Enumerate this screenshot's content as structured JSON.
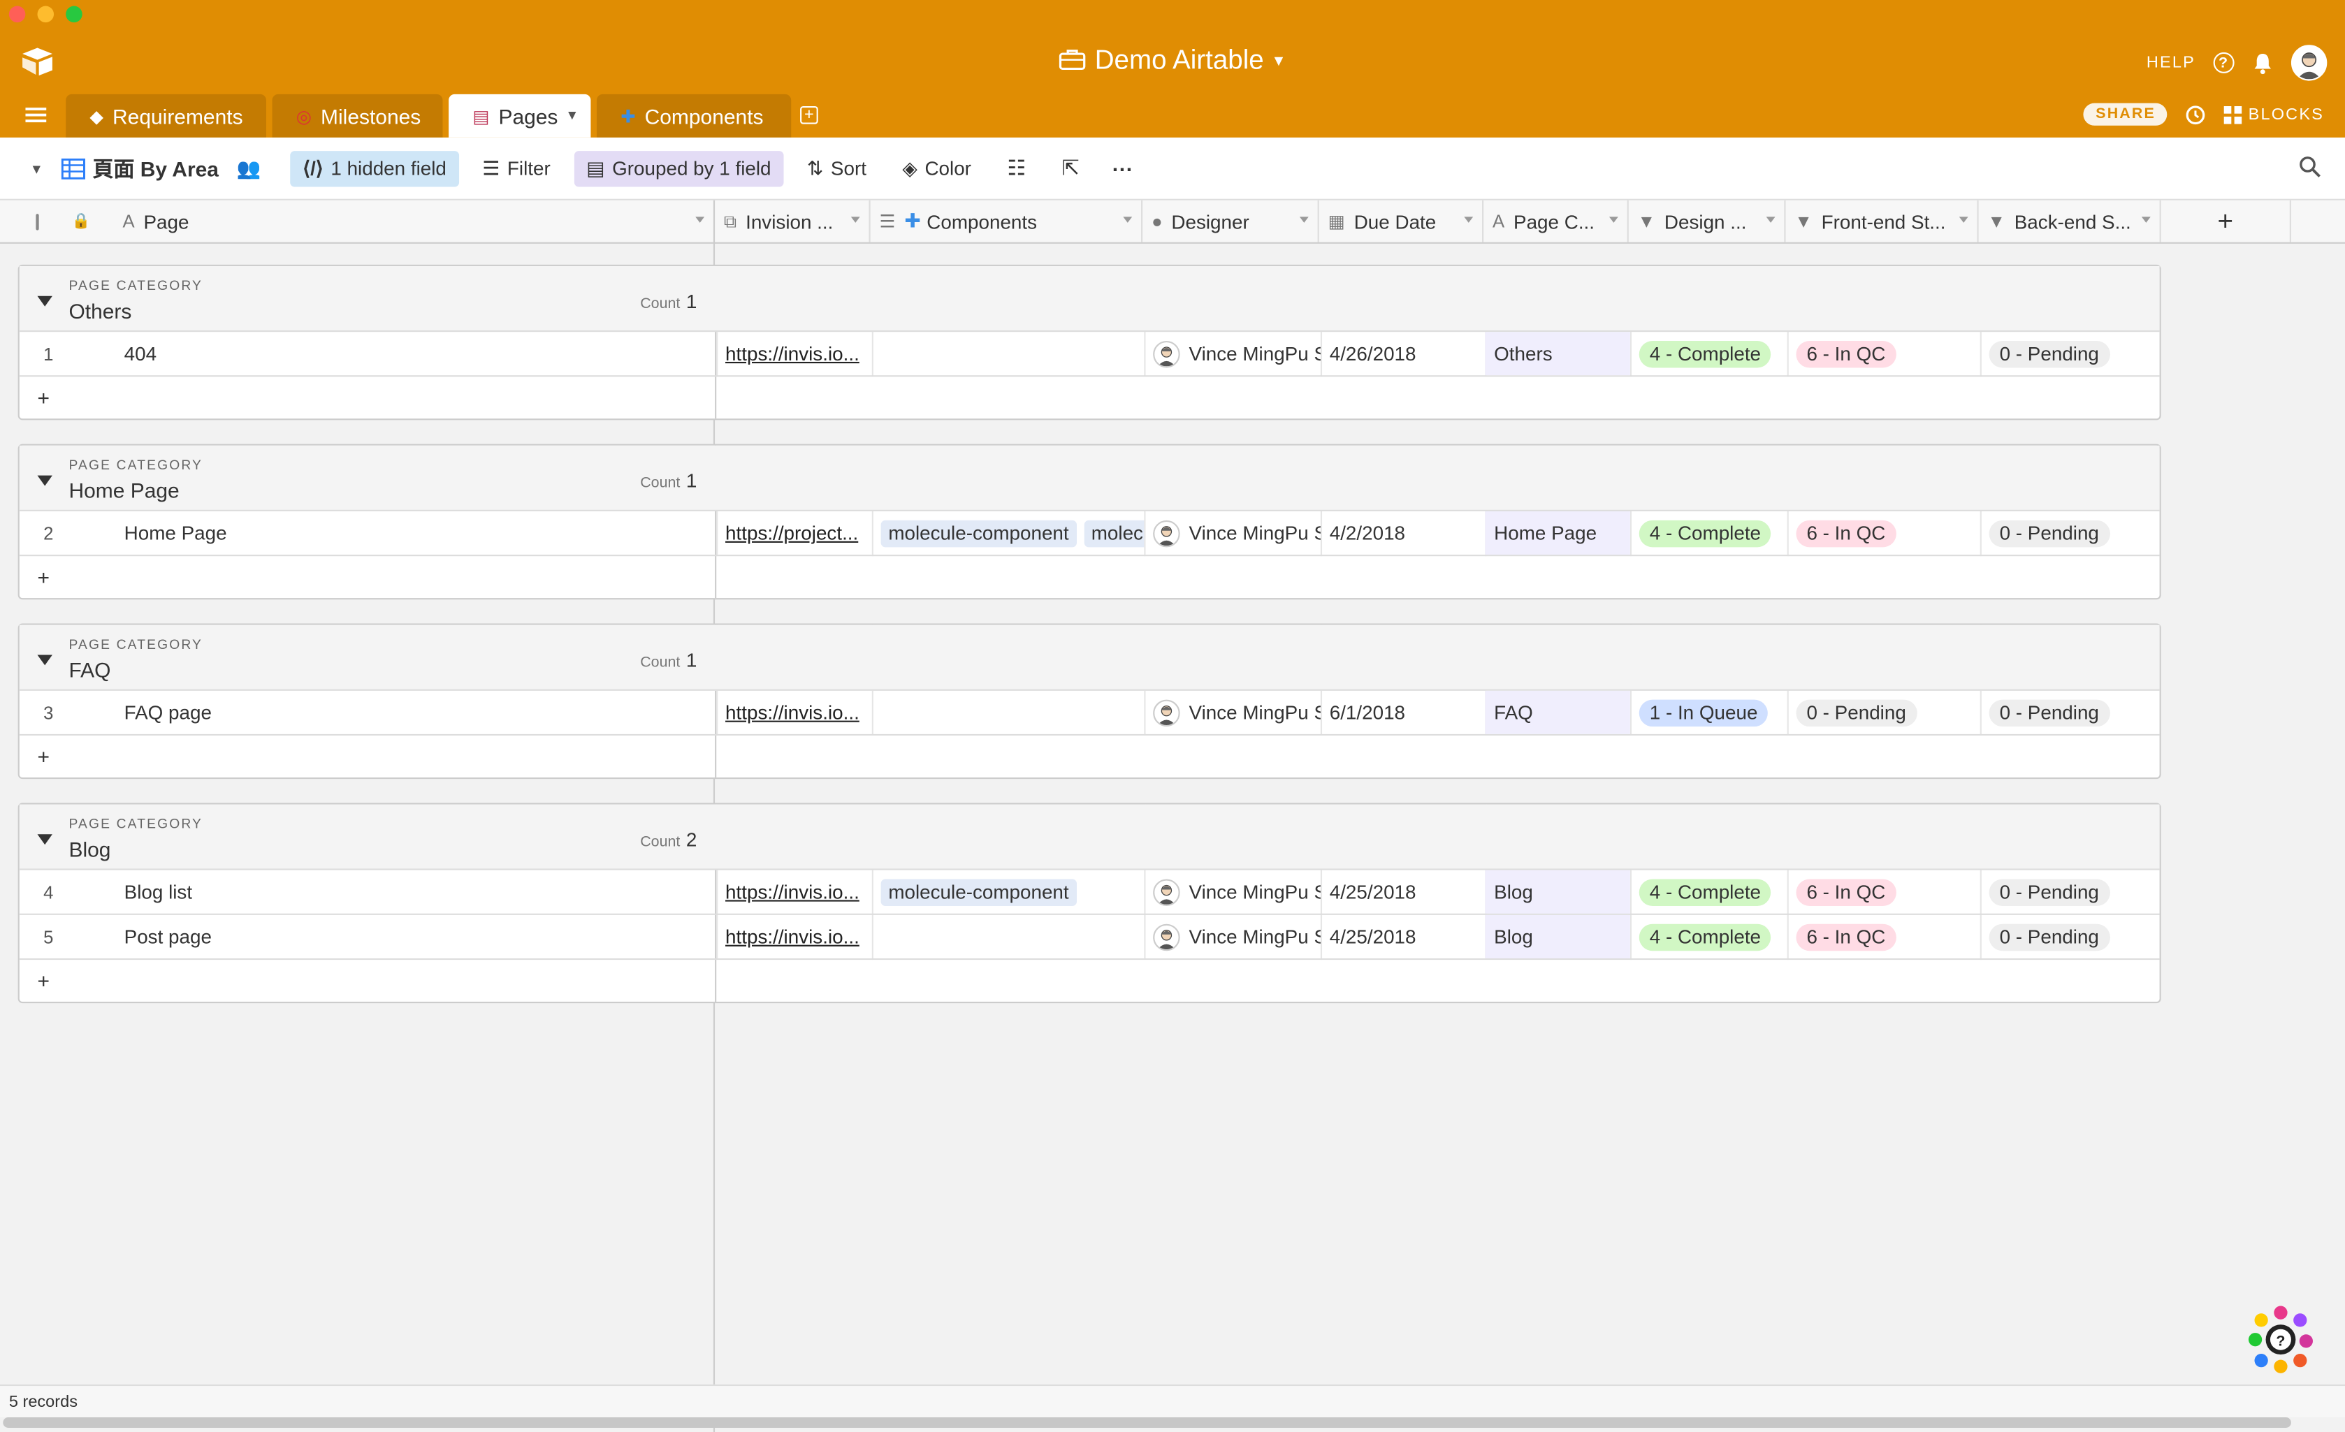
{
  "window": {
    "base_title": "Demo Airtable",
    "help_label": "HELP",
    "share_label": "SHARE",
    "blocks_label": "BLOCKS",
    "traffic_colors": [
      "#ff5f57",
      "#febc2e",
      "#28c840"
    ],
    "accent_color": "#e08d03"
  },
  "tabs": [
    {
      "label": "Requirements",
      "icon": "hammer-icon",
      "active": false
    },
    {
      "label": "Milestones",
      "icon": "target-icon",
      "active": false
    },
    {
      "label": "Pages",
      "icon": "books-icon",
      "active": true
    },
    {
      "label": "Components",
      "icon": "puzzle-icon",
      "active": false
    }
  ],
  "toolbar": {
    "view_name": "頁面 By Area",
    "hidden_fields": "1 hidden field",
    "filter": "Filter",
    "grouped": "Grouped by 1 field",
    "sort": "Sort",
    "color": "Color"
  },
  "columns": [
    {
      "name": "Page",
      "icon": "text-field-icon"
    },
    {
      "name": "Invision ...",
      "icon": "url-field-icon"
    },
    {
      "name": "Components",
      "icon": "link-field-icon"
    },
    {
      "name": "Designer",
      "icon": "person-field-icon"
    },
    {
      "name": "Due Date",
      "icon": "calendar-field-icon"
    },
    {
      "name": "Page C...",
      "icon": "text-field-icon"
    },
    {
      "name": "Design ...",
      "icon": "select-field-icon"
    },
    {
      "name": "Front-end St...",
      "icon": "select-field-icon"
    },
    {
      "name": "Back-end S...",
      "icon": "select-field-icon"
    }
  ],
  "group_label": "PAGE CATEGORY",
  "count_label": "Count",
  "groups": [
    {
      "name": "Others",
      "count": "1",
      "rows": [
        {
          "num": "1",
          "page": "404",
          "invision": "https://invis.io...",
          "components": [],
          "designer": "Vince MingPu Shao",
          "due": "4/26/2018",
          "category": "Others",
          "design": "4 - Complete",
          "frontend": "6 - In QC",
          "backend": "0 - Pending"
        }
      ]
    },
    {
      "name": "Home Page",
      "count": "1",
      "rows": [
        {
          "num": "2",
          "page": "Home Page",
          "invision": "https://project...",
          "components": [
            "molecule-component",
            "molecule-component"
          ],
          "designer": "Vince MingPu Shao",
          "due": "4/2/2018",
          "category": "Home Page",
          "design": "4 - Complete",
          "frontend": "6 - In QC",
          "backend": "0 - Pending"
        }
      ]
    },
    {
      "name": "FAQ",
      "count": "1",
      "rows": [
        {
          "num": "3",
          "page": "FAQ page",
          "invision": "https://invis.io...",
          "components": [],
          "designer": "Vince MingPu Shao",
          "due": "6/1/2018",
          "category": "FAQ",
          "design": "1 - In Queue",
          "frontend": "0 - Pending",
          "backend": "0 - Pending"
        }
      ]
    },
    {
      "name": "Blog",
      "count": "2",
      "rows": [
        {
          "num": "4",
          "page": "Blog list",
          "invision": "https://invis.io...",
          "components": [
            "molecule-component"
          ],
          "designer": "Vince MingPu Shao",
          "due": "4/25/2018",
          "category": "Blog",
          "design": "4 - Complete",
          "frontend": "6 - In QC",
          "backend": "0 - Pending"
        },
        {
          "num": "5",
          "page": "Post page",
          "invision": "https://invis.io...",
          "components": [],
          "designer": "Vince MingPu Shao",
          "due": "4/25/2018",
          "category": "Blog",
          "design": "4 - Complete",
          "frontend": "6 - In QC",
          "backend": "0 - Pending"
        }
      ]
    }
  ],
  "status": {
    "records": "5 records"
  }
}
